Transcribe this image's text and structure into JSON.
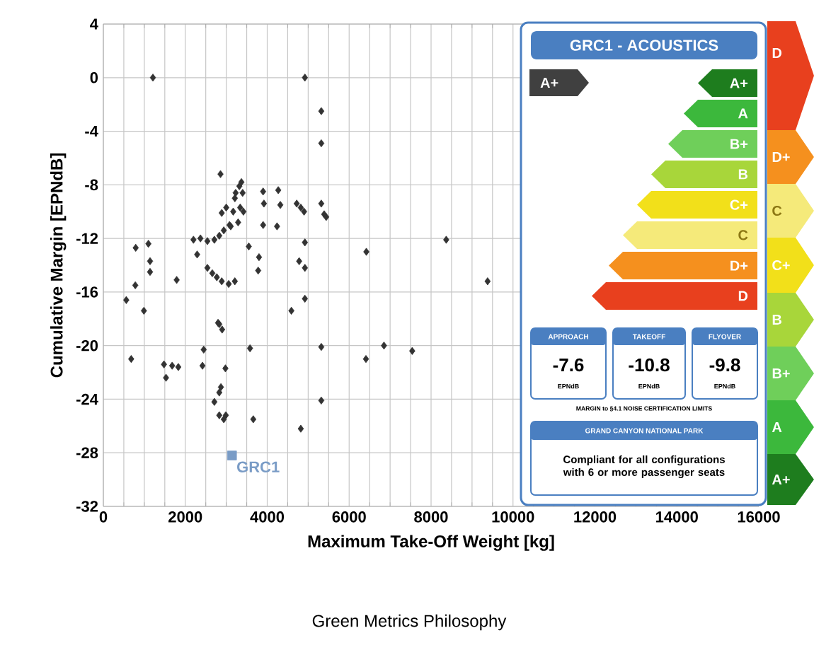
{
  "chart_data": {
    "type": "scatter",
    "xlabel": "Maximum Take-Off Weight [kg]",
    "ylabel": "Cumulative Margin [EPNdB]",
    "xlim": [
      0,
      16000
    ],
    "ylim": [
      -32,
      4
    ],
    "xticks": [
      0,
      2000,
      4000,
      6000,
      8000,
      10000,
      12000,
      14000,
      16000
    ],
    "yticks": [
      -32,
      -28,
      -24,
      -20,
      -16,
      -12,
      -8,
      -4,
      0,
      4
    ],
    "grid": true,
    "marker": "diamond",
    "series": [
      {
        "color": "#333333",
        "x": [
          1210,
          560,
          680,
          780,
          790,
          990,
          1100,
          1140,
          1140,
          1790,
          1480,
          1530,
          1680,
          1830,
          2450,
          2420,
          2200,
          2290,
          2370,
          2540,
          2710,
          2830,
          2940,
          3110,
          3290,
          2540,
          2660,
          2770,
          2890,
          3060,
          3210,
          2860,
          2890,
          3000,
          3170,
          3340,
          3230,
          3320,
          3370,
          3400,
          3210,
          3420,
          3080,
          2830,
          2900,
          2800,
          2980,
          2870,
          2830,
          2710,
          2830,
          2940,
          2990,
          3660,
          3580,
          3550,
          3800,
          3780,
          3900,
          3920,
          3900,
          4920,
          5320,
          5320,
          4270,
          4320,
          4240,
          4720,
          4820,
          4900,
          4920,
          4780,
          4920,
          4920,
          4590,
          5320,
          5390,
          5440,
          5320,
          5320,
          4820,
          6420,
          6410,
          6850,
          7540,
          8370,
          9380
        ],
        "values": [
          0.0,
          -16.6,
          -21.0,
          -15.5,
          -12.7,
          -17.4,
          -12.4,
          -13.7,
          -14.5,
          -15.1,
          -21.4,
          -22.4,
          -21.5,
          -21.6,
          -20.3,
          -21.5,
          -12.1,
          -13.2,
          -12.0,
          -12.2,
          -12.1,
          -11.8,
          -11.4,
          -11.1,
          -10.8,
          -14.2,
          -14.6,
          -14.9,
          -15.2,
          -15.4,
          -15.2,
          -7.2,
          -10.1,
          -9.7,
          -10.0,
          -9.7,
          -8.6,
          -8.1,
          -7.8,
          -8.6,
          -9.0,
          -10.0,
          -11.0,
          -18.4,
          -18.8,
          -18.3,
          -21.7,
          -23.1,
          -23.5,
          -24.2,
          -25.2,
          -25.5,
          -25.2,
          -25.5,
          -20.2,
          -12.6,
          -13.4,
          -14.4,
          -8.5,
          -9.4,
          -11.0,
          0.0,
          -2.5,
          -4.9,
          -8.4,
          -9.5,
          -11.1,
          -9.4,
          -9.7,
          -10.0,
          -12.3,
          -13.7,
          -14.2,
          -16.5,
          -17.4,
          -9.4,
          -10.2,
          -10.4,
          -20.1,
          -24.1,
          -26.2,
          -13.0,
          -21.0,
          -20.0,
          -20.4,
          -12.1,
          -15.2
        ]
      },
      {
        "name": "GRC1",
        "color": "#7a9cc6",
        "marker": "square",
        "x": [
          3140
        ],
        "values": [
          -28.2
        ]
      }
    ],
    "annotations": [
      "GRC1 - ACOUSTICS",
      "A+",
      "A+",
      "A",
      "B+",
      "B",
      "C+",
      "C",
      "D+",
      "D",
      "APPROACH",
      "TAKEOFF",
      "FLYOVER",
      "-7.6",
      "-10.8",
      "-9.8",
      "EPNdB",
      "EPNdB",
      "EPNdB",
      "MARGIN to §4.1 NOISE CERTIFICATION LIMITS",
      "GRAND CANYON NATIONAL PARK",
      "Compliant for all configurations with 6 or more passenger seats",
      "D",
      "D+",
      "C",
      "C+",
      "B",
      "B+",
      "A",
      "A+",
      "Green Metrics Philosophy"
    ]
  }
}
